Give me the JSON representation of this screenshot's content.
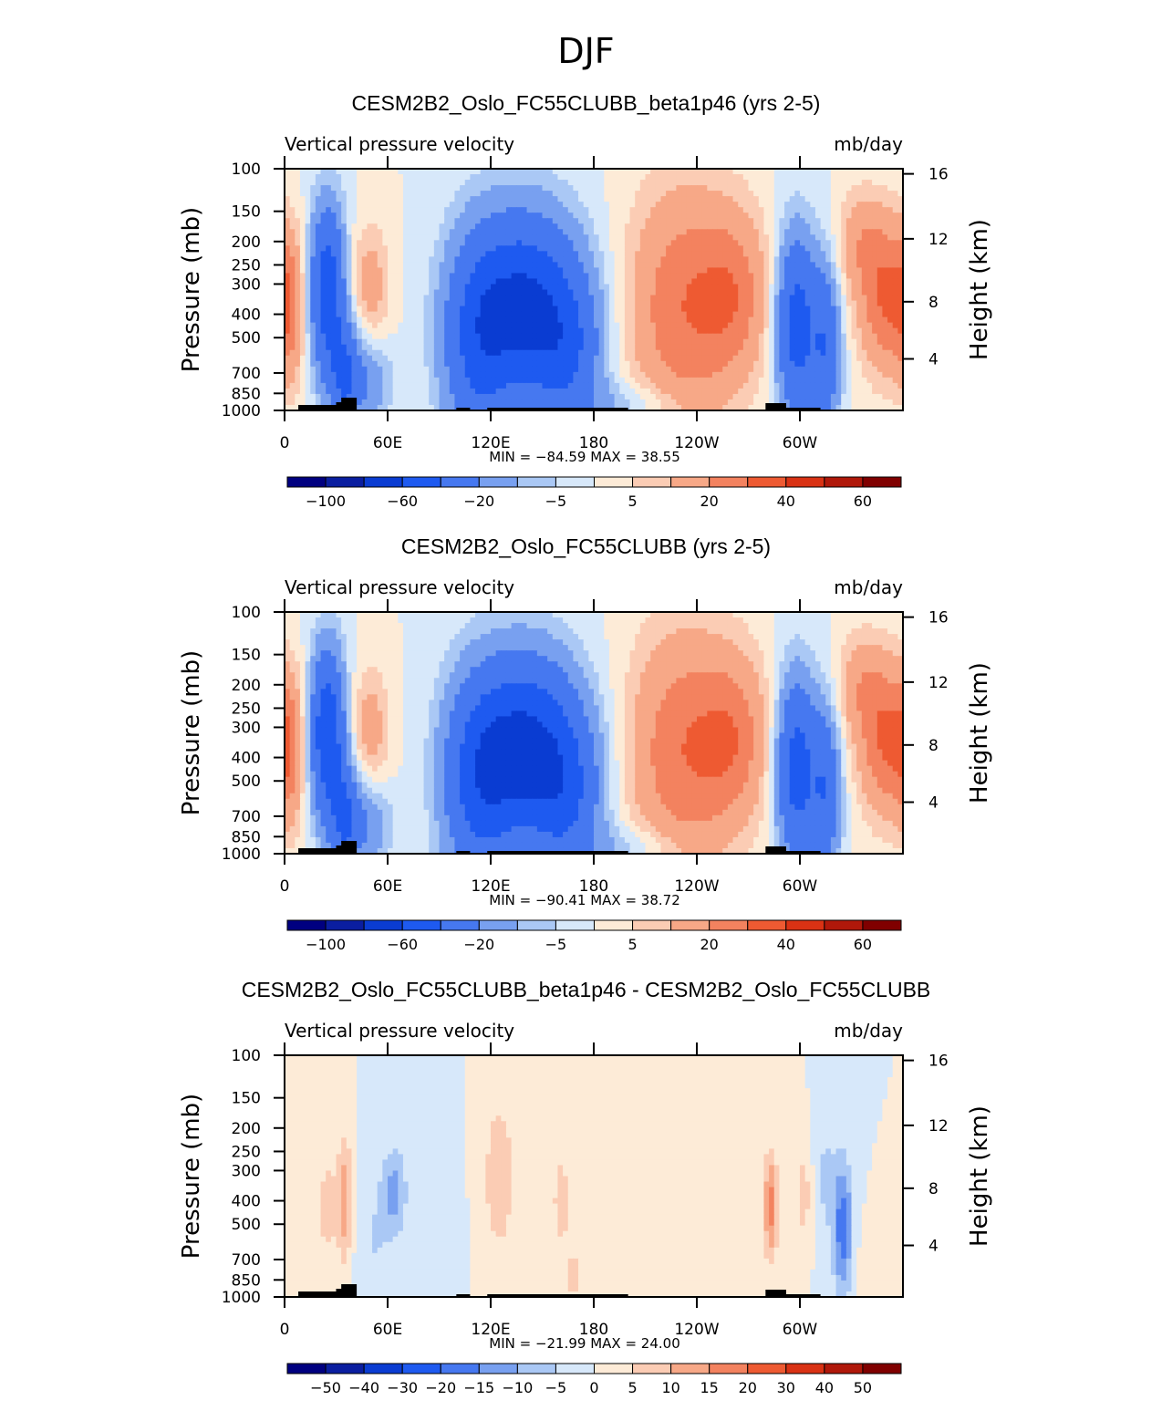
{
  "page_title": "DJF",
  "colors": {
    "main_scale": [
      "#000080",
      "#0a1ea0",
      "#0a3cd2",
      "#1e5af0",
      "#4678f0",
      "#78a0f0",
      "#aac8f5",
      "#d7e8fa",
      "#fdebd7",
      "#fbccb4",
      "#f7a887",
      "#f3825f",
      "#ee5a32",
      "#d93214",
      "#b0180a",
      "#800000"
    ],
    "diff_scale": [
      "#000080",
      "#0a1ea0",
      "#0a3cd2",
      "#1e5af0",
      "#4678f0",
      "#78a0f0",
      "#aac8f5",
      "#d7e8fa",
      "#fdebd7",
      "#fbccb4",
      "#f7a887",
      "#f3825f",
      "#ee5a32",
      "#d93214",
      "#b0180a",
      "#800000"
    ]
  },
  "panels": [
    {
      "title": "CESM2B2_Oslo_FC55CLUBB_beta1p46 (yrs 2-5)",
      "variable": "Vertical pressure velocity",
      "units": "mb/day",
      "stats": "MIN = −84.59   MAX =   38.55",
      "colorbar_labels": [
        "−100",
        "−60",
        "−20",
        "−5",
        "5",
        "20",
        "40",
        "60"
      ]
    },
    {
      "title": "CESM2B2_Oslo_FC55CLUBB (yrs 2-5)",
      "variable": "Vertical pressure velocity",
      "units": "mb/day",
      "stats": "MIN = −90.41   MAX =   38.72",
      "colorbar_labels": [
        "−100",
        "−60",
        "−20",
        "−5",
        "5",
        "20",
        "40",
        "60"
      ]
    },
    {
      "title": "CESM2B2_Oslo_FC55CLUBB_beta1p46 - CESM2B2_Oslo_FC55CLUBB",
      "variable": "Vertical pressure velocity",
      "units": "mb/day",
      "stats": "MIN = −21.99   MAX =   24.00",
      "colorbar_labels": [
        "−50",
        "−40",
        "−30",
        "−20",
        "−15",
        "−10",
        "−5",
        "0",
        "5",
        "10",
        "15",
        "20",
        "30",
        "40",
        "50"
      ]
    }
  ],
  "chart_data": [
    {
      "type": "heatmap",
      "title": "CESM2B2_Oslo_FC55CLUBB_beta1p46 (yrs 2-5)",
      "xlabel": "",
      "ylabel": "Pressure (mb)",
      "ylabel_right": "Height (km)",
      "x_ticks": [
        "0",
        "60E",
        "120E",
        "180",
        "120W",
        "60W"
      ],
      "x_tick_values": [
        0,
        60,
        120,
        180,
        240,
        300
      ],
      "xlim": [
        0,
        360
      ],
      "y_ticks": [
        100,
        150,
        200,
        250,
        300,
        400,
        500,
        700,
        850,
        1000
      ],
      "ylim": [
        1000,
        100
      ],
      "y_scale": "log",
      "y_right_ticks": [
        4,
        8,
        12,
        16
      ],
      "levels": [
        -100,
        -80,
        -60,
        -40,
        -20,
        -10,
        -5,
        0,
        5,
        10,
        20,
        30,
        40,
        50,
        60
      ],
      "min": -84.59,
      "max": 38.55
    },
    {
      "type": "heatmap",
      "title": "CESM2B2_Oslo_FC55CLUBB (yrs 2-5)",
      "xlabel": "",
      "ylabel": "Pressure (mb)",
      "ylabel_right": "Height (km)",
      "x_ticks": [
        "0",
        "60E",
        "120E",
        "180",
        "120W",
        "60W"
      ],
      "x_tick_values": [
        0,
        60,
        120,
        180,
        240,
        300
      ],
      "xlim": [
        0,
        360
      ],
      "y_ticks": [
        100,
        150,
        200,
        250,
        300,
        400,
        500,
        700,
        850,
        1000
      ],
      "ylim": [
        1000,
        100
      ],
      "y_scale": "log",
      "y_right_ticks": [
        4,
        8,
        12,
        16
      ],
      "levels": [
        -100,
        -80,
        -60,
        -40,
        -20,
        -10,
        -5,
        0,
        5,
        10,
        20,
        30,
        40,
        50,
        60
      ],
      "min": -90.41,
      "max": 38.72
    },
    {
      "type": "heatmap",
      "title": "CESM2B2_Oslo_FC55CLUBB_beta1p46 - CESM2B2_Oslo_FC55CLUBB",
      "xlabel": "",
      "ylabel": "Pressure (mb)",
      "ylabel_right": "Height (km)",
      "x_ticks": [
        "0",
        "60E",
        "120E",
        "180",
        "120W",
        "60W"
      ],
      "x_tick_values": [
        0,
        60,
        120,
        180,
        240,
        300
      ],
      "xlim": [
        0,
        360
      ],
      "y_ticks": [
        100,
        150,
        200,
        250,
        300,
        400,
        500,
        700,
        850,
        1000
      ],
      "ylim": [
        1000,
        100
      ],
      "y_scale": "log",
      "y_right_ticks": [
        4,
        8,
        12,
        16
      ],
      "levels": [
        -50,
        -40,
        -30,
        -20,
        -15,
        -10,
        -5,
        0,
        5,
        10,
        15,
        20,
        30,
        40,
        50
      ],
      "min": -21.99,
      "max": 24.0
    }
  ]
}
